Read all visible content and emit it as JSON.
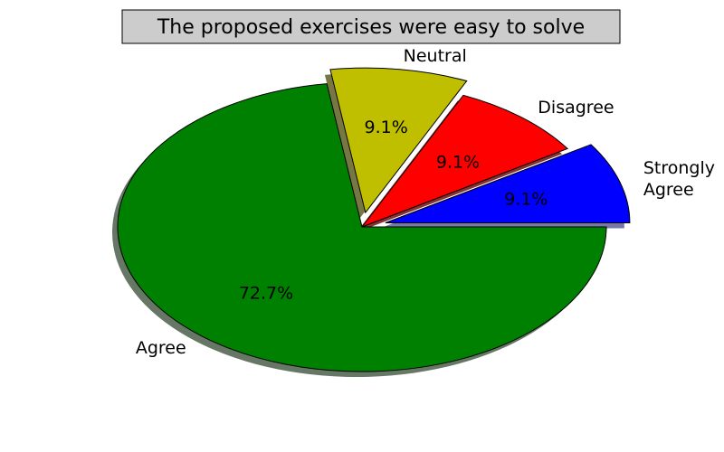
{
  "chart_data": {
    "type": "pie",
    "title": "The proposed exercises were easy to solve",
    "slices": [
      {
        "label": "Strongly Agree",
        "label_lines": [
          "Strongly",
          "Agree"
        ],
        "value": 9.1,
        "pct_label": "9.1%",
        "color": "#0000ff",
        "shadow": "#7777aa",
        "exploded": true
      },
      {
        "label": "Disagree",
        "label_lines": [
          "Disagree"
        ],
        "value": 9.1,
        "pct_label": "9.1%",
        "color": "#ff0000",
        "shadow": "#883333",
        "exploded": false
      },
      {
        "label": "Neutral",
        "label_lines": [
          "Neutral"
        ],
        "value": 9.1,
        "pct_label": "9.1%",
        "color": "#bfbf00",
        "shadow": "#777744",
        "exploded": true
      },
      {
        "label": "Agree",
        "label_lines": [
          "Agree"
        ],
        "value": 72.7,
        "pct_label": "72.7%",
        "color": "#008000",
        "shadow": "#667766",
        "exploded": false
      }
    ],
    "start_angle_deg": 0,
    "direction": "counterclockwise",
    "shadow": true
  }
}
